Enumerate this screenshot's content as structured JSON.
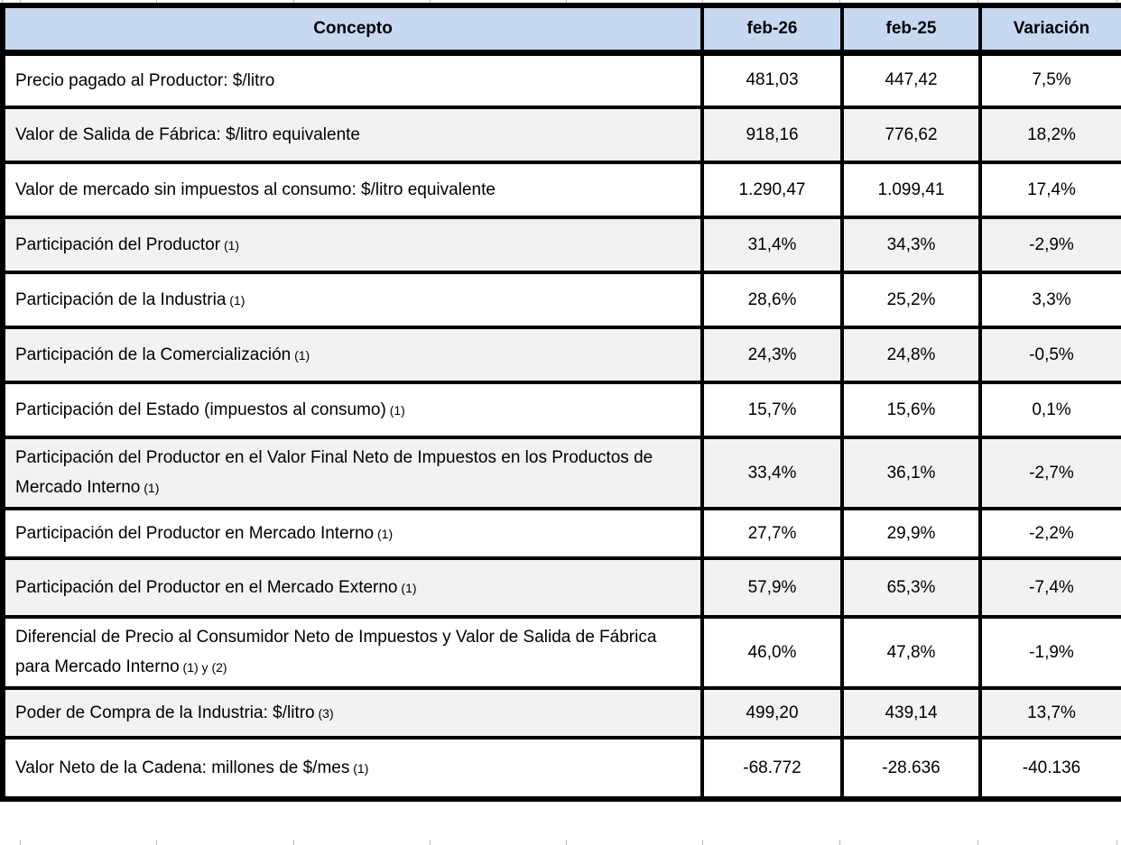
{
  "table": {
    "columns": [
      {
        "label": "Concepto"
      },
      {
        "label": "feb-26"
      },
      {
        "label": "feb-25"
      },
      {
        "label": "Variación"
      }
    ],
    "rows": [
      {
        "concepto": "Precio pagado al Productor: $/litro",
        "note": "",
        "feb26": "481,03",
        "feb25": "447,42",
        "variacion": "7,5%",
        "shaded": false
      },
      {
        "concepto": "Valor de Salida de Fábrica: $/litro equivalente",
        "note": "",
        "feb26": "918,16",
        "feb25": "776,62",
        "variacion": "18,2%",
        "shaded": true
      },
      {
        "concepto": "Valor de mercado sin impuestos al consumo: $/litro equivalente",
        "note": "",
        "feb26": "1.290,47",
        "feb25": "1.099,41",
        "variacion": "17,4%",
        "shaded": false
      },
      {
        "concepto": "Participación del Productor",
        "note": "(1)",
        "feb26": "31,4%",
        "feb25": "34,3%",
        "variacion": "-2,9%",
        "shaded": true
      },
      {
        "concepto": "Participación de la Industria",
        "note": "(1)",
        "feb26": "28,6%",
        "feb25": "25,2%",
        "variacion": "3,3%",
        "shaded": false
      },
      {
        "concepto": "Participación de la Comercialización",
        "note": "(1)",
        "feb26": "24,3%",
        "feb25": "24,8%",
        "variacion": "-0,5%",
        "shaded": true
      },
      {
        "concepto": "Participación del Estado (impuestos al consumo)",
        "note": "(1)",
        "feb26": "15,7%",
        "feb25": "15,6%",
        "variacion": "0,1%",
        "shaded": false
      },
      {
        "concepto": "Participación del Productor en el Valor Final Neto de Impuestos en los Productos de Mercado Interno",
        "note": "(1)",
        "feb26": "33,4%",
        "feb25": "36,1%",
        "variacion": "-2,7%",
        "shaded": true
      },
      {
        "concepto": "Participación del Productor en Mercado Interno",
        "note": "(1)",
        "feb26": "27,7%",
        "feb25": "29,9%",
        "variacion": "-2,2%",
        "shaded": false
      },
      {
        "concepto": "Participación del Productor en el Mercado Externo",
        "note": "(1)",
        "feb26": "57,9%",
        "feb25": "65,3%",
        "variacion": "-7,4%",
        "shaded": true
      },
      {
        "concepto": "Diferencial de Precio al Consumidor Neto de Impuestos y Valor de Salida de Fábrica para Mercado Interno",
        "note": "(1) y (2)",
        "feb26": "46,0%",
        "feb25": "47,8%",
        "variacion": "-1,9%",
        "shaded": false
      },
      {
        "concepto": "Poder de Compra de la Industria: $/litro",
        "note": "(3)",
        "feb26": "499,20",
        "feb25": "439,14",
        "variacion": "13,7%",
        "shaded": true
      },
      {
        "concepto": "Valor Neto de la Cadena: millones de $/mes",
        "note": "(1)",
        "feb26": "-68.772",
        "feb25": "-28.636",
        "variacion": "-40.136",
        "shaded": false
      }
    ]
  },
  "colors": {
    "header_bg": "#c6d9f1",
    "shaded_row_bg": "#f2f2f2",
    "border": "#000000",
    "gridline_tick": "#b9b9b9"
  }
}
